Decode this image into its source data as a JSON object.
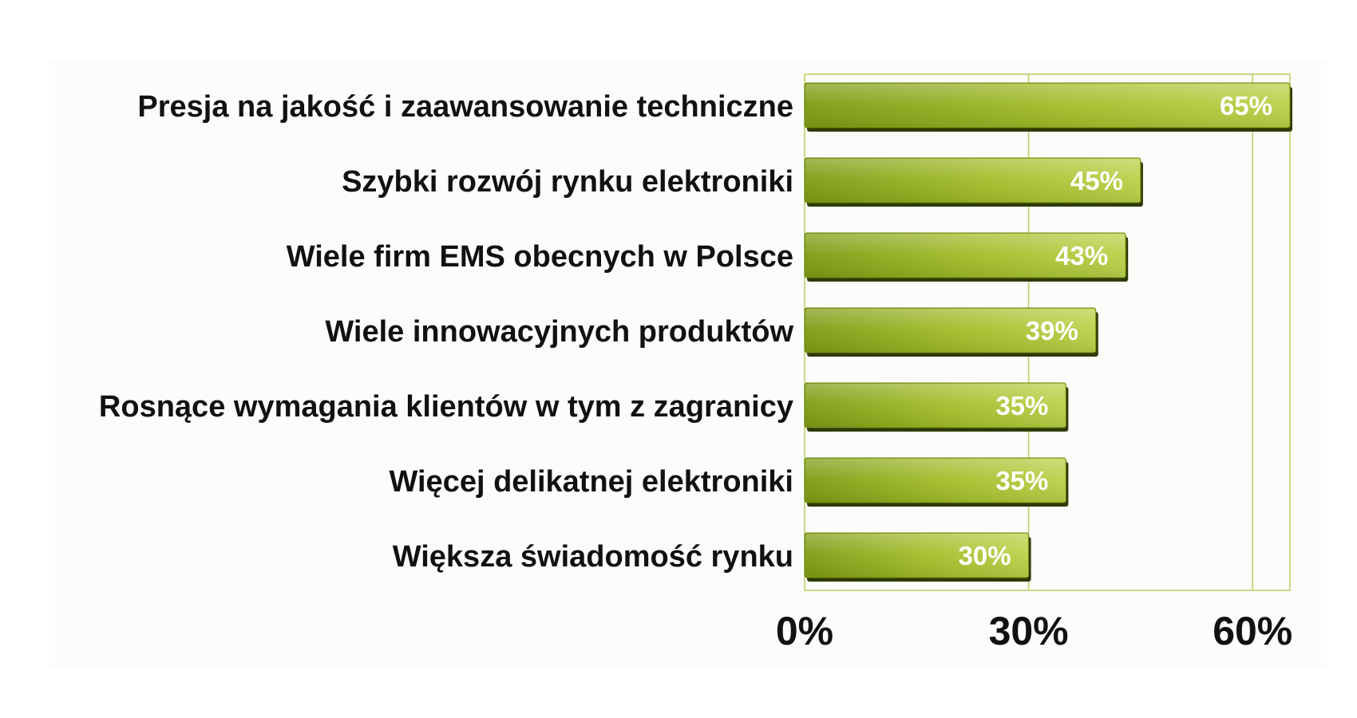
{
  "chart_data": {
    "type": "bar",
    "orientation": "horizontal",
    "categories": [
      "Presja na jakość i zaawansowanie techniczne",
      "Szybki rozwój rynku elektroniki",
      "Wiele firm EMS obecnych w Polsce",
      "Wiele innowacyjnych produktów",
      "Rosnące wymagania klientów w tym z zagranicy",
      "Więcej delikatnej elektroniki",
      "Większa świadomość rynku"
    ],
    "values": [
      65,
      45,
      43,
      39,
      35,
      35,
      30
    ],
    "value_labels": [
      "65%",
      "45%",
      "43%",
      "39%",
      "35%",
      "35%",
      "30%"
    ],
    "xlim": [
      0,
      65
    ],
    "x_ticks": [
      0,
      30,
      60
    ],
    "x_tick_labels": [
      "0%",
      "30%",
      "60%"
    ],
    "grid": true,
    "legend": "none",
    "colors": {
      "bar_dark": "#7e9a12",
      "bar_mid": "#a3bd2a",
      "bar_light": "#b9d148",
      "bar_shadow": "#2f3a05",
      "plot_border": "#b8d36b",
      "gridline": "#b8d36b",
      "plot_background": "#fcfcfa"
    }
  }
}
